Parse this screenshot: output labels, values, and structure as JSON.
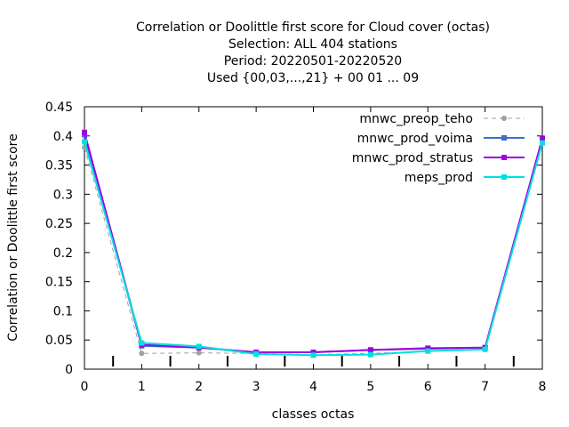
{
  "chart_data": {
    "type": "line",
    "title_lines": [
      "Correlation or Doolittle first score  for Cloud cover (octas)",
      "Selection: ALL    404 stations",
      "Period: 20220501-20220520",
      "Used {00,03,...,21} + 00 01 ... 09"
    ],
    "xlabel": "classes octas",
    "ylabel": "Correlation or Doolittle first score",
    "xlim": [
      0,
      8
    ],
    "ylim": [
      0,
      0.45
    ],
    "xticks": [
      "0",
      "1",
      "2",
      "3",
      "4",
      "5",
      "6",
      "7",
      "8"
    ],
    "yticks": [
      "0",
      "0.05",
      "0.1",
      "0.15",
      "0.2",
      "0.25",
      "0.3",
      "0.35",
      "0.4",
      "0.45"
    ],
    "legend_position": "top-right",
    "grid": false,
    "x": [
      0,
      1,
      2,
      3,
      4,
      5,
      6,
      7,
      8
    ],
    "series": [
      {
        "name": "mnwc_preop_teho",
        "color": "#a0a0a0",
        "dashed": true,
        "values": [
          0.38,
          0.027,
          0.028,
          0.027,
          0.025,
          0.027,
          0.031,
          0.034,
          0.39
        ]
      },
      {
        "name": "mnwc_prod_voima",
        "color": "#3a6fd0",
        "dashed": false,
        "values": [
          0.402,
          0.04,
          0.037,
          0.029,
          0.029,
          0.033,
          0.035,
          0.037,
          0.393
        ]
      },
      {
        "name": "mnwc_prod_stratus",
        "color": "#a000e0",
        "dashed": false,
        "values": [
          0.406,
          0.042,
          0.037,
          0.029,
          0.029,
          0.033,
          0.036,
          0.037,
          0.396
        ]
      },
      {
        "name": "meps_prod",
        "color": "#00e0e0",
        "dashed": false,
        "values": [
          0.39,
          0.045,
          0.039,
          0.026,
          0.024,
          0.025,
          0.031,
          0.034,
          0.388
        ]
      }
    ],
    "minor_marks_x": [
      0.5,
      1.5,
      2.5,
      3.5,
      4.5,
      5.5,
      6.5,
      7.5
    ]
  }
}
